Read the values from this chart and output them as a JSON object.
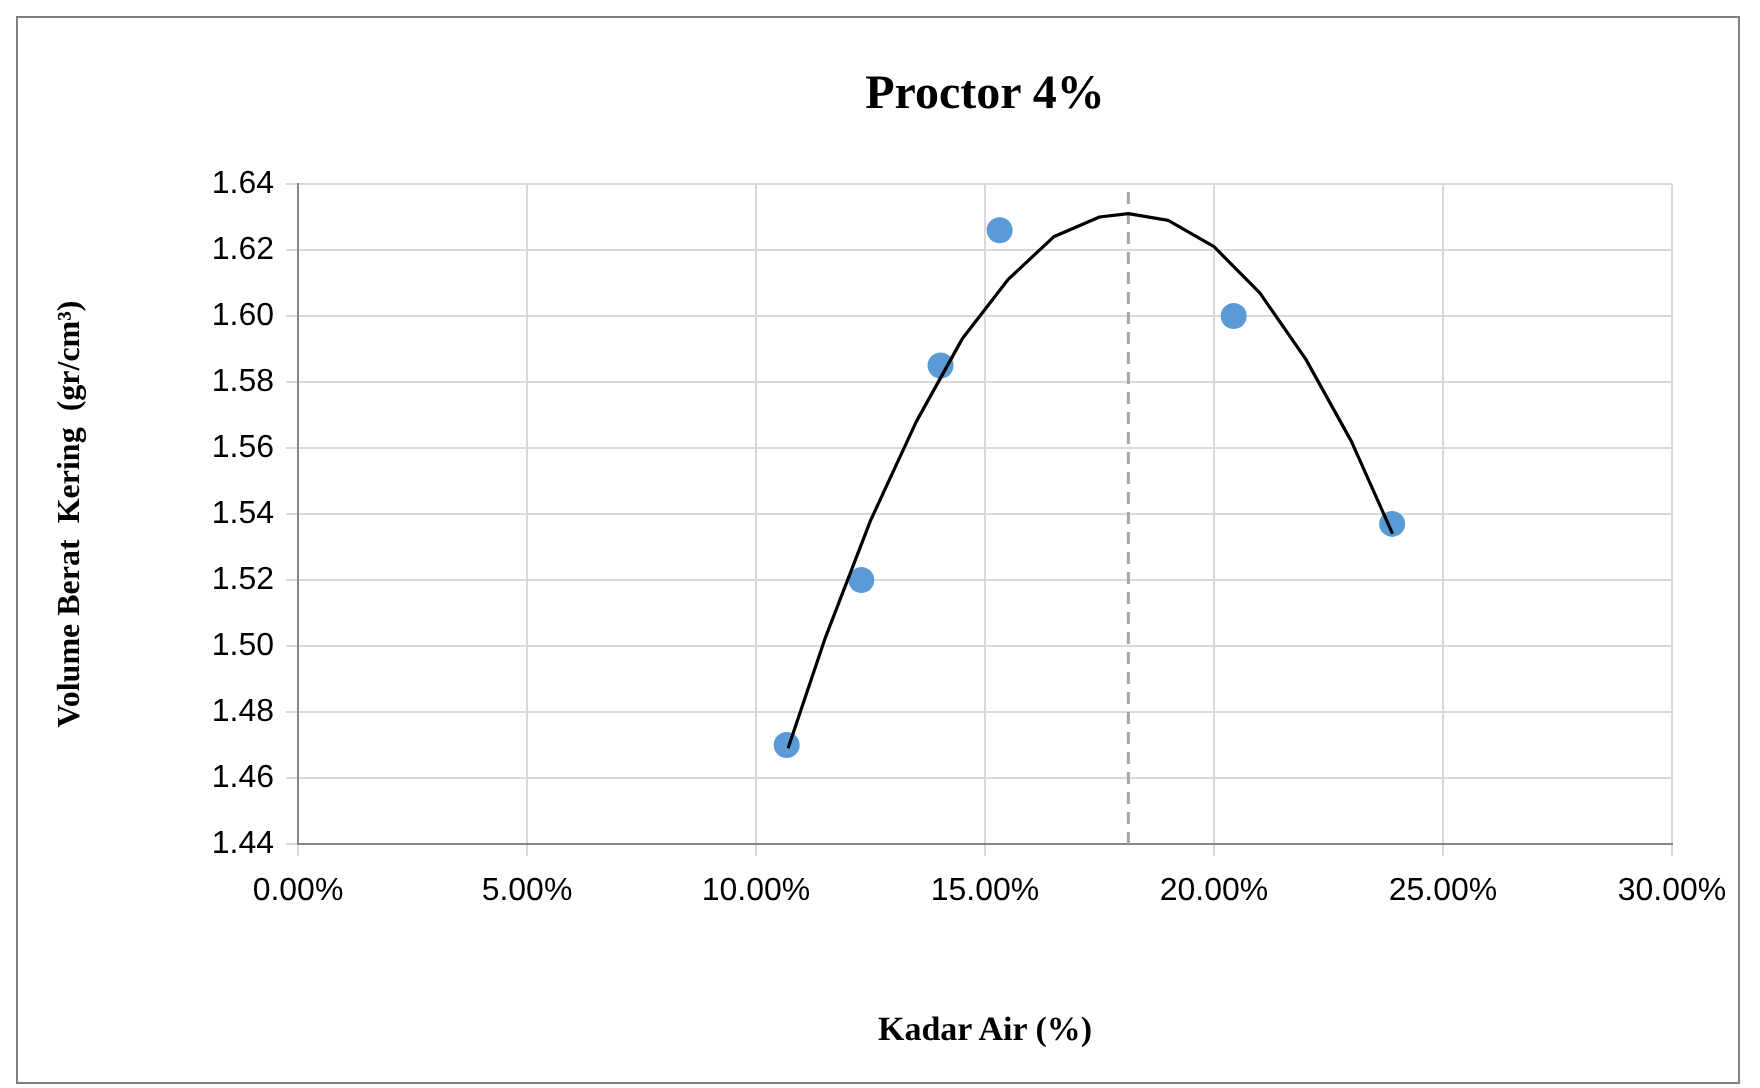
{
  "chart_data": {
    "type": "scatter",
    "title": "Proctor 4%",
    "xlabel": "Kadar Air (%)",
    "ylabel": "Volume Berat  Kering  (gr/cm³)",
    "xlim": [
      0,
      30
    ],
    "xticks": [
      {
        "value": 0,
        "label": "0.00%"
      },
      {
        "value": 5,
        "label": "5.00%"
      },
      {
        "value": 10,
        "label": "10.00%"
      },
      {
        "value": 15,
        "label": "15.00%"
      },
      {
        "value": 20,
        "label": "20.00%"
      },
      {
        "value": 25,
        "label": "25.00%"
      },
      {
        "value": 30,
        "label": "30.00%"
      }
    ],
    "ylim": [
      1.44,
      1.64
    ],
    "yticks": [
      {
        "value": 1.44,
        "label": "1.44"
      },
      {
        "value": 1.46,
        "label": "1.46"
      },
      {
        "value": 1.48,
        "label": "1.48"
      },
      {
        "value": 1.5,
        "label": "1.50"
      },
      {
        "value": 1.52,
        "label": "1.52"
      },
      {
        "value": 1.54,
        "label": "1.54"
      },
      {
        "value": 1.56,
        "label": "1.56"
      },
      {
        "value": 1.58,
        "label": "1.58"
      },
      {
        "value": 1.6,
        "label": "1.60"
      },
      {
        "value": 1.62,
        "label": "1.62"
      },
      {
        "value": 1.64,
        "label": "1.64"
      }
    ],
    "grid": true,
    "legend": false,
    "series": [
      {
        "type": "scatter",
        "marker": "circle",
        "color": "#5b9bd5",
        "x": [
          10.67,
          12.3,
          14.03,
          15.32,
          20.43,
          23.89
        ],
        "values": [
          1.47,
          1.52,
          1.585,
          1.626,
          1.6,
          1.537
        ]
      },
      {
        "type": "line",
        "marker": "none",
        "line_style": "solid",
        "color": "#000000",
        "x": [
          10.7,
          11.5,
          12.5,
          13.5,
          14.5,
          15.5,
          16.5,
          17.5,
          18.13,
          19,
          20,
          21,
          22,
          23,
          23.9
        ],
        "values": [
          1.469,
          1.502,
          1.538,
          1.568,
          1.593,
          1.611,
          1.624,
          1.63,
          1.631,
          1.629,
          1.621,
          1.607,
          1.587,
          1.562,
          1.534
        ]
      }
    ],
    "ref_lines": [
      {
        "axis": "x",
        "value": 18.13,
        "color": "#a6a6a6",
        "line_style": "dashed"
      }
    ]
  }
}
